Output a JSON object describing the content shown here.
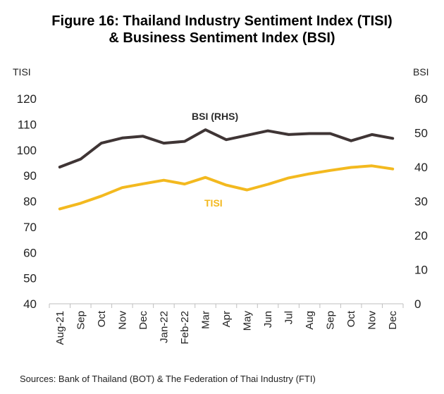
{
  "chart_data": {
    "type": "line",
    "title_line1": "Figure 16: Thailand  Industry Sentiment Index (TISI)",
    "title_line2": "& Business Sentiment Index (BSI)",
    "left_axis_label": "TISI",
    "right_axis_label": "BSI",
    "left_ylim": [
      40,
      120
    ],
    "left_ticks": [
      "120",
      "110",
      "100",
      "90",
      "80",
      "70",
      "60",
      "50",
      "40"
    ],
    "right_ylim": [
      0,
      60
    ],
    "right_ticks": [
      "60",
      "50",
      "40",
      "30",
      "20",
      "10",
      "0"
    ],
    "categories": [
      "Aug-21",
      "Sep",
      "Oct",
      "Nov",
      "Dec",
      "Jan-22",
      "Feb-22",
      "Mar",
      "Apr",
      "May",
      "Jun",
      "Jul",
      "Aug",
      "Sep",
      "Oct",
      "Nov",
      "Dec"
    ],
    "series": [
      {
        "name": "BSI  (RHS)",
        "axis": "right",
        "color": "#3f3535",
        "values": [
          40.0,
          42.3,
          47.0,
          48.5,
          49.0,
          47.0,
          47.5,
          50.9,
          48.0,
          49.3,
          50.6,
          49.5,
          49.8,
          49.8,
          47.7,
          49.5,
          48.4
        ]
      },
      {
        "name": "TISI",
        "axis": "left",
        "color": "#f3b91f",
        "values": [
          77.0,
          79.2,
          82.0,
          85.3,
          86.8,
          88.2,
          86.7,
          89.3,
          86.3,
          84.4,
          86.6,
          89.1,
          90.7,
          92.0,
          93.2,
          93.8,
          92.6
        ]
      }
    ],
    "grid": false,
    "legend": "inline labels"
  },
  "source": "Sources: Bank of Thailand (BOT) & The Federation of Thai Industry (FTI)"
}
